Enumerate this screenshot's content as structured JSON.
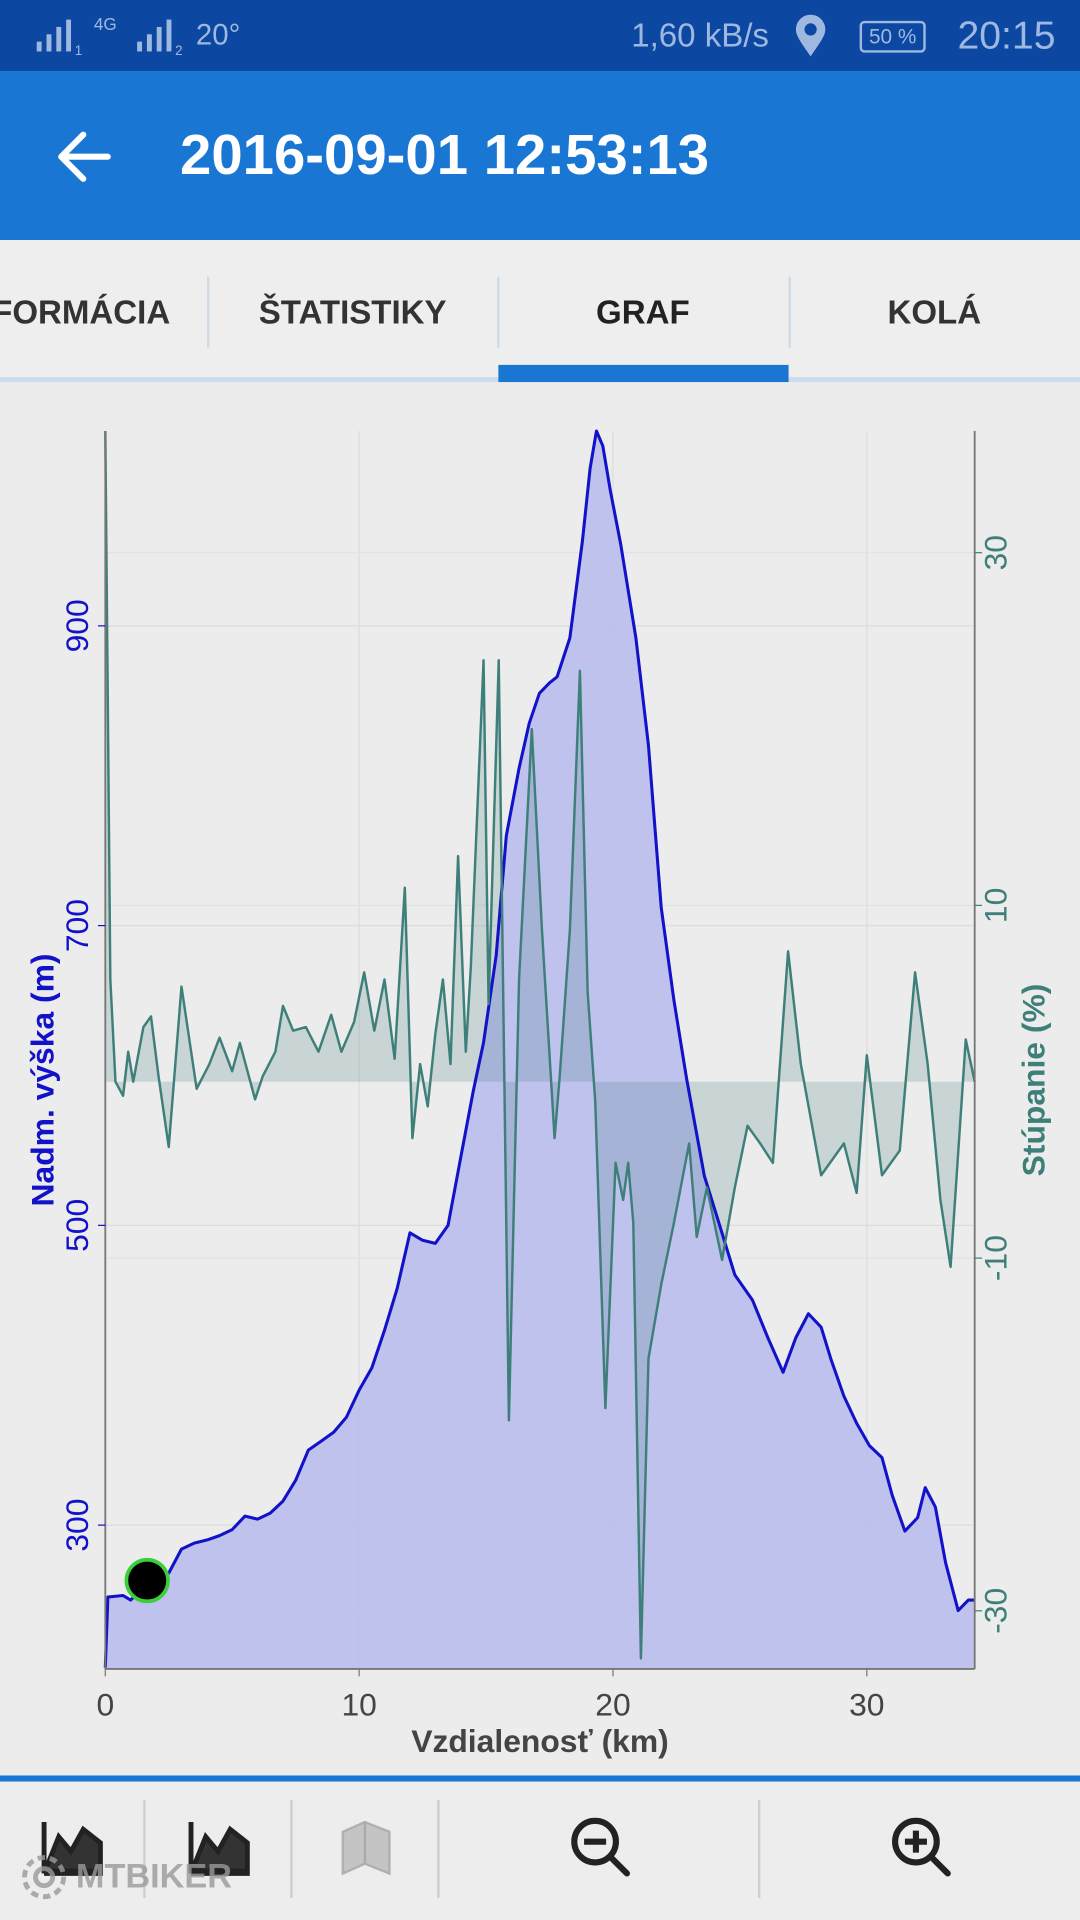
{
  "status_bar": {
    "sim_labels": [
      "1",
      "2"
    ],
    "network": "4G",
    "temperature": "20°",
    "speed": "1,60 kB/s",
    "battery": "50 %",
    "time": "20:15"
  },
  "header": {
    "title": "2016-09-01 12:53:13"
  },
  "tabs": [
    "FORMÁCIA",
    "ŠTATISTIKY",
    "GRAF",
    "KOLÁ"
  ],
  "chart_data": {
    "type": "line",
    "x_label": "Vzdialenosť (km)",
    "y_label": "Nadm. výška (m)",
    "y2_label": "Stúpanie (%)",
    "xlim": [
      0,
      34.25
    ],
    "ylim": [
      204,
      1030
    ],
    "y2lim": [
      -33.3,
      36.9
    ],
    "xticks": [
      0,
      10,
      20,
      30
    ],
    "yticks": [
      300,
      500,
      700,
      900
    ],
    "y2ticks": [
      -30,
      -10,
      10,
      30
    ],
    "grid": true,
    "series": [
      {
        "color": "#1212c8",
        "fill": "#b9bbee",
        "x": [
          0,
          0.1,
          0.7,
          1.0,
          1.5,
          2,
          2.5,
          3,
          3.5,
          4,
          4.5,
          5,
          5.5,
          6,
          6.5,
          7,
          7.5,
          8,
          8.5,
          9,
          9.5,
          10,
          10.5,
          11,
          11.5,
          12,
          12.5,
          13,
          13.5,
          14,
          14.5,
          14.9,
          15.4,
          15.8,
          16.3,
          16.7,
          17.1,
          17.5,
          17.8,
          18.3,
          18.8,
          19.1,
          19.35,
          19.6,
          19.9,
          20.3,
          20.9,
          21.4,
          21.9,
          22.4,
          22.9,
          23.6,
          24.2,
          24.8,
          25.5,
          26.1,
          26.7,
          27.2,
          27.7,
          28.2,
          28.6,
          29.1,
          29.6,
          30.1,
          30.6,
          31.0,
          31.5,
          32.0,
          32.3,
          32.7,
          33.1,
          33.6,
          34.0,
          34.25
        ],
        "values": [
          205,
          252,
          253,
          250,
          258,
          262,
          268,
          284,
          288,
          290,
          293,
          297,
          306,
          304,
          308,
          316,
          330,
          350,
          356,
          362,
          372,
          390,
          405,
          430,
          458,
          495,
          490,
          488,
          500,
          545,
          590,
          622,
          680,
          760,
          805,
          835,
          855,
          862,
          866,
          892,
          957,
          1005,
          1030,
          1020,
          990,
          955,
          892,
          820,
          712,
          650,
          598,
          533,
          500,
          467,
          450,
          425,
          402,
          425,
          441,
          432,
          410,
          386,
          368,
          353,
          345,
          320,
          296,
          305,
          325,
          312,
          275,
          243,
          250,
          250
        ]
      },
      {
        "color": "#3e7f7a",
        "fill": "#3e7f7a",
        "axis": "y2",
        "x": [
          0,
          0.2,
          0.4,
          0.7,
          0.9,
          1.1,
          1.5,
          1.8,
          2.1,
          2.5,
          3,
          3.6,
          4.1,
          4.5,
          5,
          5.3,
          5.9,
          6.2,
          6.7,
          7,
          7.4,
          7.9,
          8.4,
          8.9,
          9.3,
          9.8,
          10.2,
          10.6,
          11,
          11.4,
          11.8,
          12.1,
          12.4,
          12.7,
          13,
          13.3,
          13.6,
          13.9,
          14.2,
          14.4,
          14.9,
          15.1,
          15.5,
          15.9,
          16.3,
          16.8,
          17.2,
          17.7,
          17.9,
          18.3,
          18.7,
          19,
          19.3,
          19.7,
          20.1,
          20.4,
          20.6,
          20.8,
          21.1,
          21.4,
          21.9,
          22.4,
          23,
          23.3,
          23.7,
          24.3,
          24.8,
          25.3,
          25.8,
          26.3,
          26.9,
          27.4,
          28.2,
          29.1,
          29.6,
          30,
          30.6,
          31.3,
          31.9,
          32.4,
          32.9,
          33.3,
          33.9,
          34.25
        ],
        "values": [
          36.9,
          5.8,
          0,
          -0.8,
          1.7,
          0,
          3.1,
          3.7,
          0.3,
          -3.7,
          5.4,
          -0.4,
          1.0,
          2.5,
          0.6,
          2.2,
          -1,
          0.3,
          1.7,
          4.3,
          2.9,
          3.1,
          1.7,
          3.8,
          1.7,
          3.4,
          6.2,
          2.9,
          5.8,
          1.3,
          11,
          -3.2,
          1.0,
          -1.4,
          2.7,
          5.8,
          1.0,
          12.8,
          1.7,
          6.5,
          23.9,
          4.4,
          23.9,
          -19.2,
          5.8,
          20,
          8.6,
          -3.2,
          0.3,
          8.6,
          23.3,
          5.1,
          -1.1,
          -18.5,
          -4.6,
          -6.7,
          -4.6,
          -8,
          -32.7,
          -15.7,
          -11.5,
          -8,
          -3.5,
          -8.8,
          -6,
          -10.1,
          -6,
          -2.5,
          -3.5,
          -4.6,
          7.4,
          1.0,
          -5.3,
          -3.5,
          -6.3,
          1.5,
          -5.3,
          -3.9,
          6.2,
          1.0,
          -6.7,
          -10.5,
          2.4,
          0
        ]
      }
    ],
    "position_marker": {
      "x": 1.65,
      "y": 263
    }
  },
  "watermark": "MTBIKER"
}
